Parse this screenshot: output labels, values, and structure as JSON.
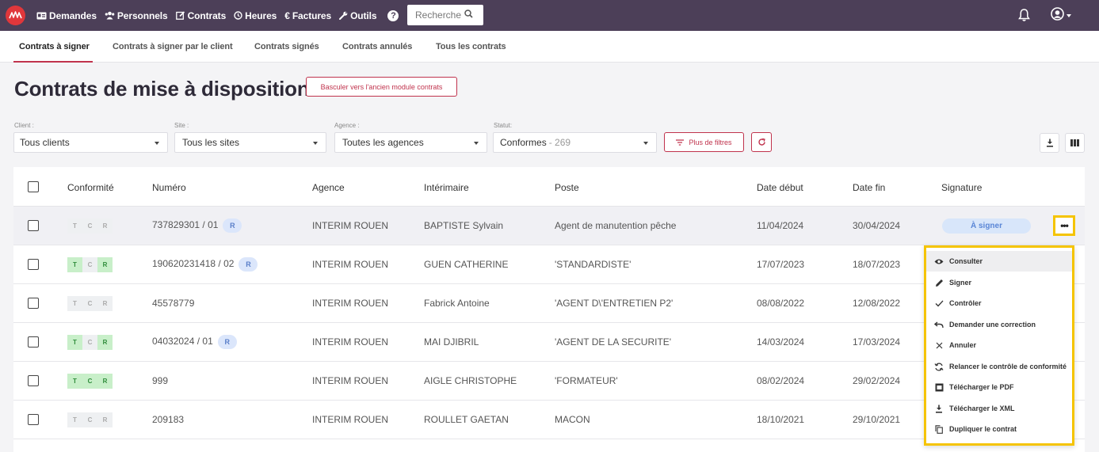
{
  "nav": {
    "items": [
      {
        "icon": "id-card-icon",
        "label": "Demandes"
      },
      {
        "icon": "users-icon",
        "label": "Personnels"
      },
      {
        "icon": "edit-icon",
        "label": "Contrats"
      },
      {
        "icon": "clock-icon",
        "label": "Heures"
      },
      {
        "icon": "euro-icon",
        "label": "Factures"
      },
      {
        "icon": "wrench-icon",
        "label": "Outils"
      }
    ],
    "search_placeholder": "Recherche"
  },
  "tabs": [
    {
      "label": "Contrats à signer",
      "active": true
    },
    {
      "label": "Contrats à signer par le client"
    },
    {
      "label": "Contrats signés"
    },
    {
      "label": "Contrats annulés"
    },
    {
      "label": "Tous les contrats"
    }
  ],
  "page": {
    "title": "Contrats de mise à disposition",
    "legacy_button": "Basculer vers l'ancien module contrats"
  },
  "filters": {
    "client": {
      "label": "Client :",
      "value": "Tous clients"
    },
    "site": {
      "label": "Site :",
      "value": "Tous les sites"
    },
    "agence": {
      "label": "Agence :",
      "value": "Toutes les agences"
    },
    "statut": {
      "label": "Statut:",
      "value": "Conformes",
      "count": "- 269"
    },
    "more_filters": "Plus de filtres"
  },
  "table": {
    "headers": [
      "Conformité",
      "Numéro",
      "Agence",
      "Intérimaire",
      "Poste",
      "Date début",
      "Date fin",
      "Signature"
    ],
    "rows": [
      {
        "tcr": "off",
        "numero": "737829301 / 01",
        "r": true,
        "agence": "INTERIM ROUEN",
        "interimaire": "BAPTISTE Sylvain",
        "poste": "Agent de manutention pêche",
        "debut": "11/04/2024",
        "fin": "30/04/2024",
        "signature": "À signer"
      },
      {
        "tcr": "on",
        "numero": "190620231418 / 02",
        "r": true,
        "agence": "INTERIM ROUEN",
        "interimaire": "GUEN CATHERINE",
        "poste": "'STANDARDISTE'",
        "debut": "17/07/2023",
        "fin": "18/07/2023"
      },
      {
        "tcr": "off",
        "numero": "45578779",
        "r": false,
        "agence": "INTERIM ROUEN",
        "interimaire": "Fabrick Antoine",
        "poste": "'AGENT D\\'ENTRETIEN P2'",
        "debut": "08/08/2022",
        "fin": "12/08/2022"
      },
      {
        "tcr": "on",
        "numero": "04032024 / 01",
        "r": true,
        "agence": "INTERIM ROUEN",
        "interimaire": "MAI DJIBRIL",
        "poste": "'AGENT DE LA SECURITE'",
        "debut": "14/03/2024",
        "fin": "17/03/2024"
      },
      {
        "tcr": "on",
        "numero": "999",
        "r": false,
        "agence": "INTERIM ROUEN",
        "interimaire": "AIGLE CHRISTOPHE",
        "poste": "'FORMATEUR'",
        "debut": "08/02/2024",
        "fin": "29/02/2024"
      },
      {
        "tcr": "off",
        "numero": "209183",
        "r": false,
        "agence": "INTERIM ROUEN",
        "interimaire": "ROULLET GAETAN",
        "poste": "MACON",
        "debut": "18/10/2021",
        "fin": "29/10/2021"
      }
    ],
    "tcr_letters": [
      "T",
      "C",
      "R"
    ],
    "r_badge": "R"
  },
  "context_menu": [
    {
      "icon": "eye-icon",
      "label": "Consulter"
    },
    {
      "icon": "pen-icon",
      "label": "Signer"
    },
    {
      "icon": "check-icon",
      "label": "Contrôler"
    },
    {
      "icon": "undo-icon",
      "label": "Demander une correction"
    },
    {
      "icon": "close-icon",
      "label": "Annuler"
    },
    {
      "icon": "refresh-icon",
      "label": "Relancer le contrôle de conformité"
    },
    {
      "icon": "pdf-icon",
      "label": "Télécharger le PDF"
    },
    {
      "icon": "download-icon",
      "label": "Télécharger le XML"
    },
    {
      "icon": "copy-icon",
      "label": "Dupliquer le contrat"
    }
  ],
  "colors": {
    "navbar": "#4c3f58",
    "accent": "#c0334d",
    "highlight": "#f5c400",
    "conform_green": "#c8efc9",
    "sign_badge": "#d8e6fa"
  }
}
